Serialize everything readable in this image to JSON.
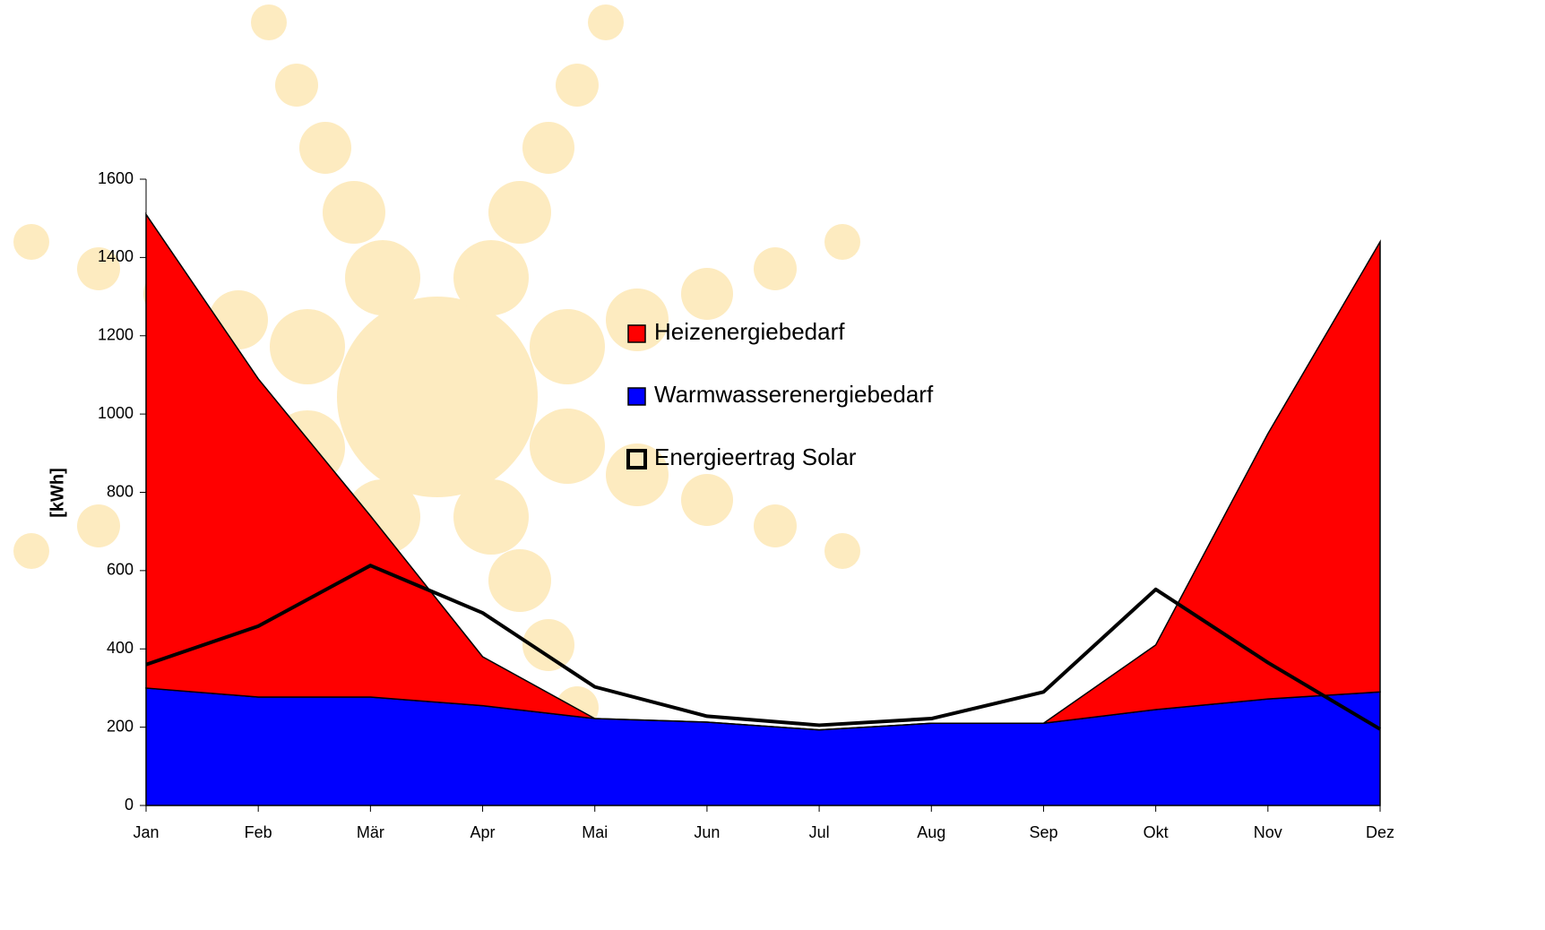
{
  "chart_data": {
    "type": "stacked_area",
    "y_label": "[kWh]",
    "categories": [
      "Jan",
      "Feb",
      "Mär",
      "Apr",
      "Mai",
      "Jun",
      "Jul",
      "Aug",
      "Sep",
      "Okt",
      "Nov",
      "Dez"
    ],
    "series": [
      {
        "name": "Warmwasserenergiebedarf",
        "color": "#0000ff",
        "values": [
          300,
          277,
          277,
          255,
          222,
          213,
          193,
          210,
          210,
          245,
          272,
          290
        ]
      },
      {
        "name": "Heizenergiebedarf",
        "color": "#ff0000",
        "values": [
          1210,
          813,
          463,
          125,
          0,
          0,
          0,
          0,
          0,
          165,
          678,
          1150
        ]
      },
      {
        "name": "Energieertrag Solar",
        "color": "#000000",
        "type": "line",
        "values": [
          360,
          458,
          613,
          492,
          303,
          228,
          205,
          222,
          290,
          552,
          365,
          195
        ]
      }
    ],
    "ylim": [
      0,
      1600
    ],
    "yticks": [
      0,
      200,
      400,
      600,
      800,
      1000,
      1200,
      1400,
      1600
    ]
  }
}
